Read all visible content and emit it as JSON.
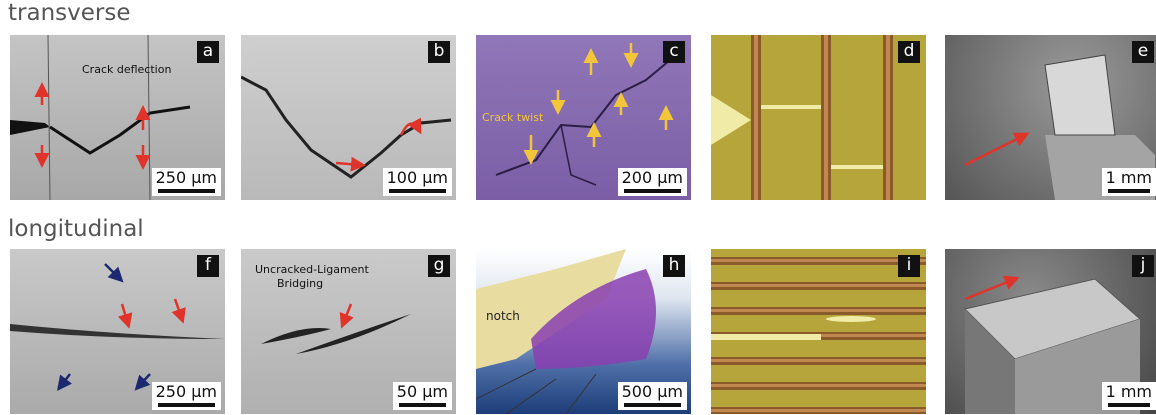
{
  "rows": [
    {
      "title": "transverse",
      "panels": [
        {
          "letter": "a",
          "scale": "250 μm",
          "annotation": [
            "Crack deflection"
          ]
        },
        {
          "letter": "b",
          "scale": "100 μm"
        },
        {
          "letter": "c",
          "scale": "200 μm",
          "annotation": [
            "Crack twist"
          ]
        },
        {
          "letter": "d"
        },
        {
          "letter": "e",
          "scale": "1 mm"
        }
      ]
    },
    {
      "title": "longitudinal",
      "panels": [
        {
          "letter": "f",
          "scale": "250 μm"
        },
        {
          "letter": "g",
          "scale": "50 μm",
          "annotation": [
            "Uncracked-Ligament",
            "Bridging"
          ]
        },
        {
          "letter": "h",
          "scale": "500 μm",
          "annotation": [
            "notch"
          ]
        },
        {
          "letter": "i"
        },
        {
          "letter": "j",
          "scale": "1 mm"
        }
      ]
    }
  ]
}
